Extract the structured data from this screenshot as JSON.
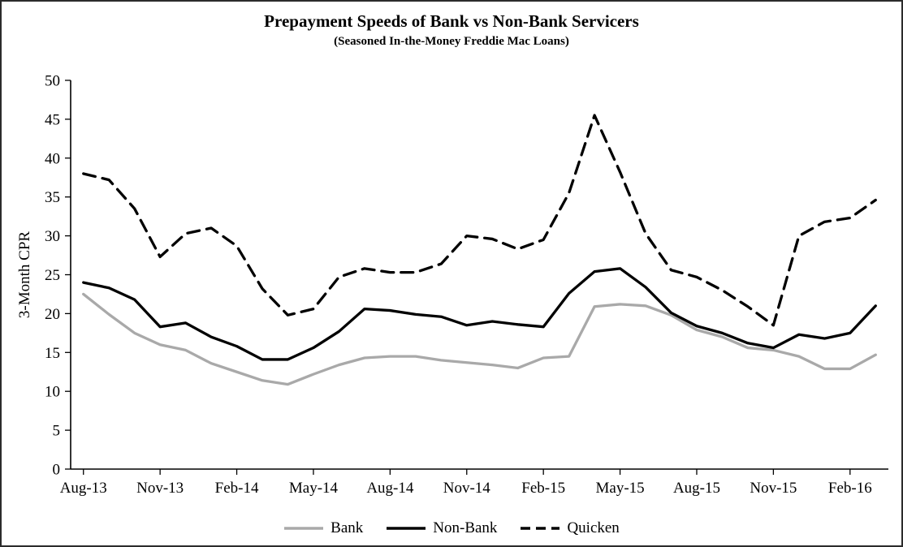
{
  "chart_data": {
    "type": "line",
    "title": "Prepayment Speeds of Bank vs Non-Bank Servicers",
    "subtitle": "(Seasoned In-the-Money Freddie Mac Loans)",
    "xlabel": "",
    "ylabel": "3-Month CPR",
    "ylim": [
      0,
      50
    ],
    "ytick_step": 5,
    "grid": false,
    "legend_position": "bottom",
    "x_tick_every": 3,
    "x_tick_labels": [
      "Aug-13",
      "Nov-13",
      "Feb-14",
      "May-14",
      "Aug-14",
      "Nov-14",
      "Feb-15",
      "May-15",
      "Aug-15",
      "Nov-15",
      "Feb-16"
    ],
    "categories": [
      "Aug-13",
      "Sep-13",
      "Oct-13",
      "Nov-13",
      "Dec-13",
      "Jan-14",
      "Feb-14",
      "Mar-14",
      "Apr-14",
      "May-14",
      "Jun-14",
      "Jul-14",
      "Aug-14",
      "Sep-14",
      "Oct-14",
      "Nov-14",
      "Dec-14",
      "Jan-15",
      "Feb-15",
      "Mar-15",
      "Apr-15",
      "May-15",
      "Jun-15",
      "Jul-15",
      "Aug-15",
      "Sep-15",
      "Oct-15",
      "Nov-15",
      "Dec-15",
      "Jan-16",
      "Feb-16",
      "Mar-16"
    ],
    "series": [
      {
        "name": "Bank",
        "color": "#a9a9a9",
        "dash": "solid",
        "values": [
          22.5,
          19.9,
          17.5,
          16.0,
          15.3,
          13.6,
          12.5,
          11.4,
          10.9,
          12.2,
          13.4,
          14.3,
          14.5,
          14.5,
          14.0,
          13.7,
          13.4,
          13.0,
          14.3,
          14.5,
          20.9,
          21.2,
          21.0,
          19.8,
          17.9,
          17.0,
          15.6,
          15.3,
          14.5,
          12.9,
          12.9,
          14.7
        ]
      },
      {
        "name": "Non-Bank",
        "color": "#000000",
        "dash": "solid",
        "values": [
          24.0,
          23.3,
          21.8,
          18.3,
          18.8,
          17.0,
          15.8,
          14.1,
          14.1,
          15.6,
          17.7,
          20.6,
          20.4,
          19.9,
          19.6,
          18.5,
          19.0,
          18.6,
          18.3,
          22.6,
          25.4,
          25.8,
          23.4,
          20.1,
          18.4,
          17.5,
          16.2,
          15.6,
          17.3,
          16.8,
          17.5,
          21.0
        ]
      },
      {
        "name": "Quicken",
        "color": "#000000",
        "dash": "dashed",
        "values": [
          38.0,
          37.2,
          33.5,
          27.3,
          30.3,
          31.0,
          28.7,
          23.2,
          19.8,
          20.6,
          24.7,
          25.8,
          25.3,
          25.3,
          26.4,
          30.0,
          29.6,
          28.3,
          29.5,
          35.5,
          45.5,
          38.2,
          30.3,
          25.6,
          24.7,
          23.0,
          20.9,
          18.5,
          30.0,
          31.8,
          32.3,
          34.6
        ]
      }
    ]
  }
}
